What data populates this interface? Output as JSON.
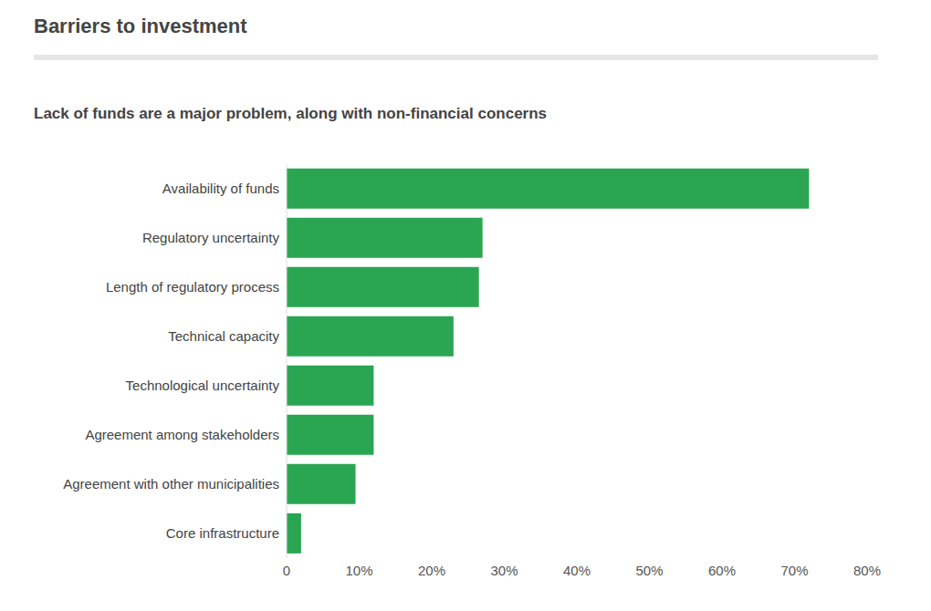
{
  "chart_data": {
    "type": "bar",
    "title": "Barriers to investment",
    "subtitle": "Lack of funds are a major problem, along with non-financial concerns",
    "orientation": "horizontal",
    "categories": [
      "Availability of funds",
      "Regulatory uncertainty",
      "Length of regulatory process",
      "Technical capacity",
      "Technological uncertainty",
      "Agreement among stakeholders",
      "Agreement with other municipalities",
      "Core infrastructure"
    ],
    "values": [
      72,
      27,
      26.5,
      23,
      12,
      12,
      9.5,
      2
    ],
    "color": "#2aa652",
    "xlim": [
      0,
      80
    ],
    "xticks": [
      0,
      {
        "value": 10,
        "label": "10%"
      },
      {
        "value": 20,
        "label": "20%"
      },
      {
        "value": 30,
        "label": "30%"
      },
      {
        "value": 40,
        "label": "40%"
      },
      {
        "value": 50,
        "label": "50%"
      },
      {
        "value": 60,
        "label": "60%"
      },
      {
        "value": 70,
        "label": "70%"
      },
      {
        "value": 80,
        "label": "80%"
      }
    ],
    "grid": false
  }
}
